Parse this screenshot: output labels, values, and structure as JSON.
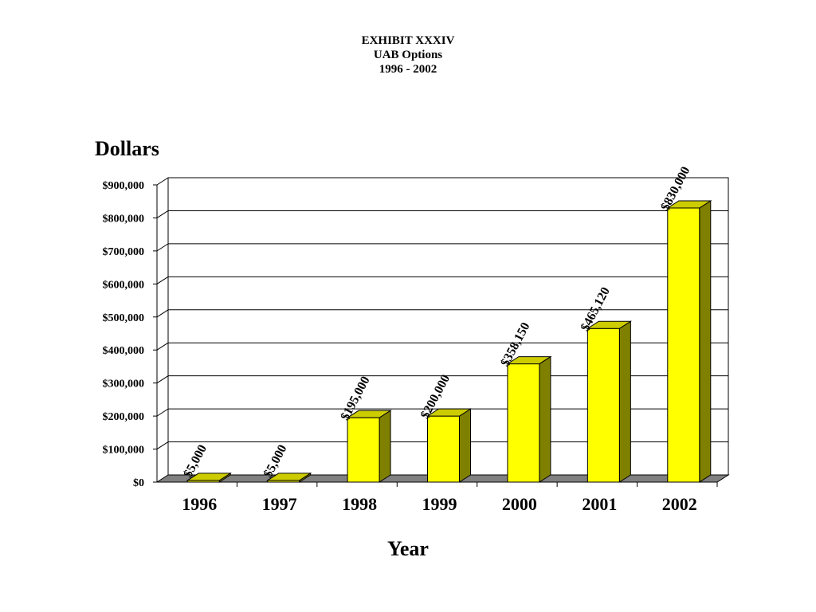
{
  "page": {
    "title_line1": "EXHIBIT XXXIV",
    "title_line2": "UAB Options",
    "title_line3": "1996 - 2002"
  },
  "colors": {
    "bar_front": "#ffff00",
    "bar_top": "#cccc00",
    "bar_side": "#808000",
    "floor": "#808080"
  },
  "chart_data": {
    "type": "bar",
    "three_d": true,
    "title": "EXHIBIT XXXIV\nUAB Options\n1996 - 2002",
    "xlabel": "Year",
    "ylabel": "Dollars",
    "ylim": [
      0,
      900000
    ],
    "yticks": [
      0,
      100000,
      200000,
      300000,
      400000,
      500000,
      600000,
      700000,
      800000,
      900000
    ],
    "ytick_labels": [
      "$0",
      "$100,000",
      "$200,000",
      "$300,000",
      "$400,000",
      "$500,000",
      "$600,000",
      "$700,000",
      "$800,000",
      "$900,000"
    ],
    "grid": true,
    "categories": [
      "1996",
      "1997",
      "1998",
      "1999",
      "2000",
      "2001",
      "2002"
    ],
    "values": [
      5000,
      5000,
      195000,
      200000,
      358150,
      465120,
      830000
    ],
    "data_labels": [
      "$5,000",
      "$5,000",
      "$195,000",
      "$200,000",
      "$358,150",
      "$465,120",
      "$830,000"
    ]
  }
}
